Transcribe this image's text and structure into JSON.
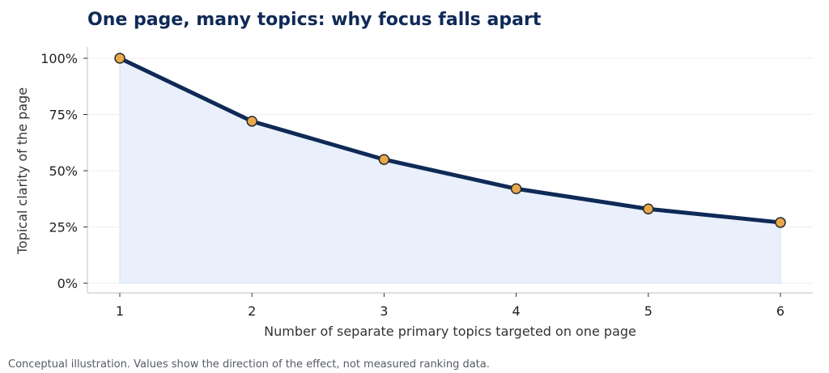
{
  "chart_data": {
    "type": "line",
    "title": "One page, many topics: why focus falls apart",
    "xlabel": "Number of separate primary topics targeted on one page",
    "ylabel": "Topical clarity of the page",
    "x": [
      1,
      2,
      3,
      4,
      5,
      6
    ],
    "x_tick_labels": [
      "1",
      "2",
      "3",
      "4",
      "5",
      "6"
    ],
    "y_ticks": [
      0,
      25,
      50,
      75,
      100
    ],
    "y_tick_labels": [
      "0%",
      "25%",
      "50%",
      "75%",
      "100%"
    ],
    "series": [
      {
        "values": [
          100,
          72,
          55,
          42,
          33,
          27
        ]
      }
    ],
    "ylim": [
      0,
      100
    ],
    "xlim": [
      1,
      6
    ],
    "grid": "horizontal",
    "area_fill": true,
    "colors": {
      "line": "#0f2a57",
      "marker_fill": "#e8a94a",
      "marker_edge": "#2a2a2a",
      "area": "#e9f0fb",
      "grid": "#eceef1",
      "axis": "#c9ccd1",
      "title": "#0f2a57"
    }
  },
  "footnote": "Conceptual illustration. Values show the direction of the effect, not measured ranking data."
}
